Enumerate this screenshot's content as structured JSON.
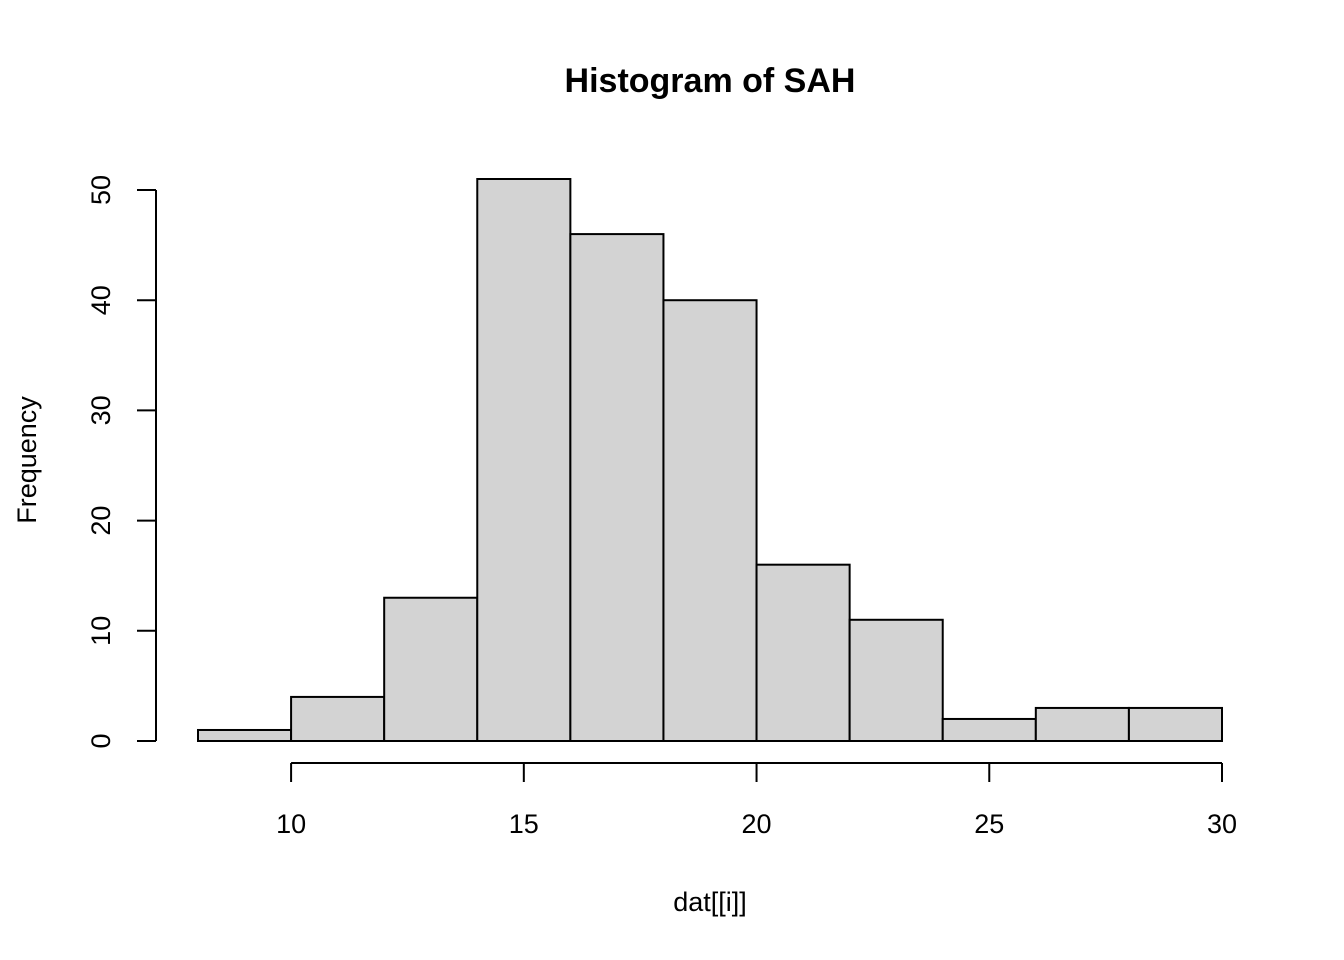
{
  "chart_data": {
    "type": "bar",
    "title": "Histogram of SAH",
    "xlabel": "dat[[i]]",
    "ylabel": "Frequency",
    "bins": [
      {
        "x0": 8,
        "x1": 10,
        "count": 1
      },
      {
        "x0": 10,
        "x1": 12,
        "count": 4
      },
      {
        "x0": 12,
        "x1": 14,
        "count": 13
      },
      {
        "x0": 14,
        "x1": 16,
        "count": 51
      },
      {
        "x0": 16,
        "x1": 18,
        "count": 46
      },
      {
        "x0": 18,
        "x1": 20,
        "count": 40
      },
      {
        "x0": 20,
        "x1": 22,
        "count": 16
      },
      {
        "x0": 22,
        "x1": 24,
        "count": 11
      },
      {
        "x0": 24,
        "x1": 26,
        "count": 2
      },
      {
        "x0": 26,
        "x1": 28,
        "count": 3
      },
      {
        "x0": 28,
        "x1": 30,
        "count": 3
      }
    ],
    "xticks": [
      10,
      15,
      20,
      25,
      30
    ],
    "yticks": [
      0,
      10,
      20,
      30,
      40,
      50
    ],
    "xlim": [
      8,
      30
    ],
    "ylim": [
      0,
      51
    ],
    "bar_color": "#d3d3d3",
    "grid": false,
    "legend": "none"
  }
}
